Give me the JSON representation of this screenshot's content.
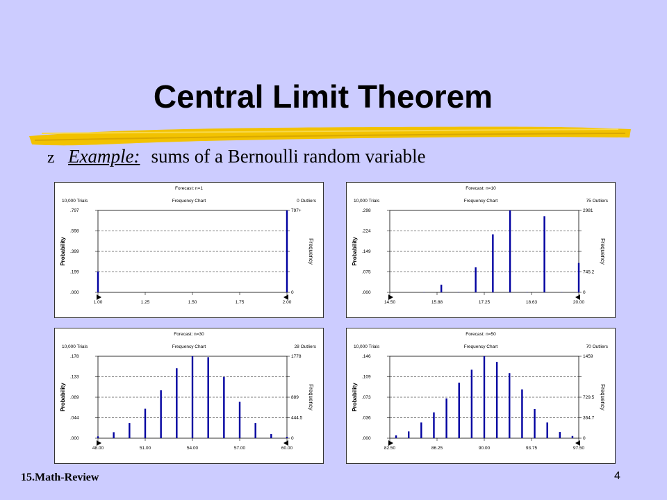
{
  "slide": {
    "title": "Central Limit Theorem",
    "bullet_glyph": "z",
    "example_label": "Example:",
    "example_text": "sums of a Bernoulli random variable",
    "footer_left": "15.Math-Review",
    "page_number": "4",
    "colors": {
      "background": "#ccccff",
      "bar": "#0000a0",
      "underline": "#f2c200"
    }
  },
  "chart_data": [
    {
      "type": "bar",
      "forecast": "Forecast: n=1",
      "trials": "10,000 Trials",
      "chart_name": "Frequency Chart",
      "outliers": "0 Outliers",
      "ylabel": "Probability",
      "y2label": "Frequency",
      "yticks": [
        ".000",
        ".199",
        ".399",
        ".598",
        ".797"
      ],
      "y2ticks": [
        "0",
        "",
        "",
        "",
        "797+"
      ],
      "xticks": [
        "1.00",
        "1.25",
        "1.50",
        "1.75",
        "2.00"
      ],
      "xlim": [
        1.0,
        2.0
      ],
      "ylim": [
        0,
        0.797
      ],
      "x": [
        1.0,
        2.0
      ],
      "values": [
        0.203,
        0.797
      ]
    },
    {
      "type": "bar",
      "forecast": "Forecast: n=10",
      "trials": "10,000 Trials",
      "chart_name": "Frequency Chart",
      "outliers": "75 Outliers",
      "ylabel": "Probability",
      "y2label": "Frequency",
      "yticks": [
        ".000",
        ".075",
        ".149",
        ".224",
        ".298"
      ],
      "y2ticks": [
        "0",
        "745.2",
        "",
        "",
        "2981"
      ],
      "xticks": [
        "14.50",
        "15.88",
        "17.25",
        "18.63",
        "20.00"
      ],
      "xlim": [
        14.5,
        20.0
      ],
      "ylim": [
        0,
        0.298
      ],
      "x": [
        15.0,
        15.5,
        16.0,
        16.5,
        17.0,
        17.5,
        18.0,
        18.5,
        19.0,
        19.5,
        20.0
      ],
      "values": [
        0.0,
        0.001,
        0.028,
        0.001,
        0.091,
        0.211,
        0.298,
        0.001,
        0.277,
        0.001,
        0.107
      ]
    },
    {
      "type": "bar",
      "forecast": "Forecast: n=30",
      "trials": "10,000 Trials",
      "chart_name": "Frequency Chart",
      "outliers": "28 Outliers",
      "ylabel": "Probability",
      "y2label": "Frequency",
      "yticks": [
        ".000",
        ".044",
        ".089",
        ".133",
        ".178"
      ],
      "y2ticks": [
        "0",
        "444.5",
        "889",
        "",
        "1778"
      ],
      "xticks": [
        "48.00",
        "51.00",
        "54.00",
        "57.00",
        "60.00"
      ],
      "xlim": [
        48.0,
        60.0
      ],
      "ylim": [
        0,
        0.178
      ],
      "x": [
        48,
        49,
        50,
        51,
        52,
        53,
        54,
        55,
        56,
        57,
        58,
        59,
        60
      ],
      "values": [
        0.004,
        0.013,
        0.033,
        0.064,
        0.104,
        0.152,
        0.178,
        0.176,
        0.133,
        0.079,
        0.033,
        0.009,
        0.003
      ]
    },
    {
      "type": "bar",
      "forecast": "Forecast: n=50",
      "trials": "10,000 Trials",
      "chart_name": "Frequency Chart",
      "outliers": "70 Outliers",
      "ylabel": "Probability",
      "y2label": "Frequency",
      "yticks": [
        ".000",
        ".036",
        ".073",
        ".109",
        ".146"
      ],
      "y2ticks": [
        "0",
        "364.7",
        "729.5",
        "",
        "1459"
      ],
      "xticks": [
        "82.50",
        "86.25",
        "90.00",
        "93.75",
        "97.50"
      ],
      "xlim": [
        82.5,
        97.5
      ],
      "ylim": [
        0,
        0.146
      ],
      "x": [
        83,
        84,
        85,
        86,
        87,
        88,
        89,
        90,
        91,
        92,
        93,
        94,
        95,
        96,
        97
      ],
      "values": [
        0.005,
        0.012,
        0.028,
        0.046,
        0.071,
        0.099,
        0.122,
        0.146,
        0.136,
        0.116,
        0.087,
        0.052,
        0.028,
        0.011,
        0.004
      ]
    }
  ]
}
